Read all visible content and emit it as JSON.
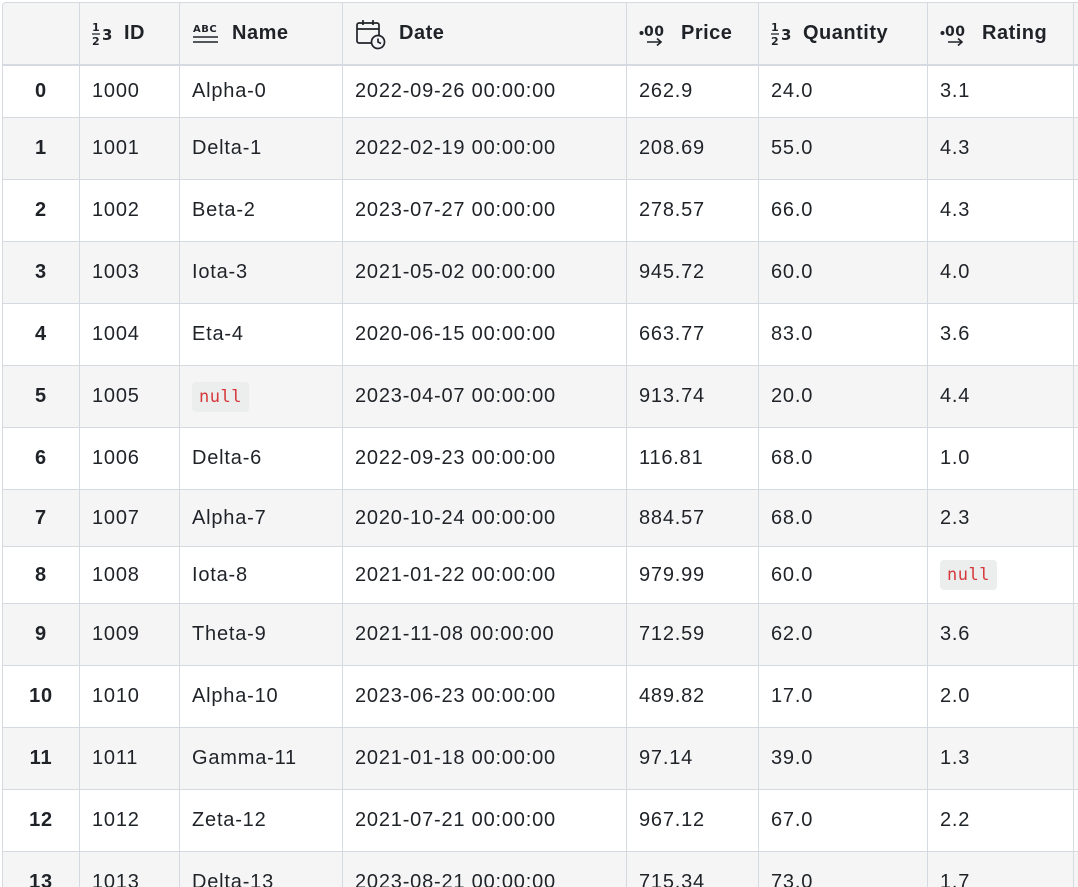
{
  "columns": [
    {
      "label": "",
      "icon": ""
    },
    {
      "label": "ID",
      "icon": "integer-type-icon"
    },
    {
      "label": "Name",
      "icon": "text-type-icon"
    },
    {
      "label": "Date",
      "icon": "calendar-clock-icon"
    },
    {
      "label": "Price",
      "icon": "decimal-type-icon"
    },
    {
      "label": "Quantity",
      "icon": "integer-type-icon"
    },
    {
      "label": "Rating",
      "icon": "decimal-type-icon"
    }
  ],
  "rows": [
    [
      "0",
      "1000",
      "Alpha-0",
      "2022-09-26 00:00:00",
      "262.9",
      "24.0",
      "3.1"
    ],
    [
      "1",
      "1001",
      "Delta-1",
      "2022-02-19 00:00:00",
      "208.69",
      "55.0",
      "4.3"
    ],
    [
      "2",
      "1002",
      "Beta-2",
      "2023-07-27 00:00:00",
      "278.57",
      "66.0",
      "4.3"
    ],
    [
      "3",
      "1003",
      "Iota-3",
      "2021-05-02 00:00:00",
      "945.72",
      "60.0",
      "4.0"
    ],
    [
      "4",
      "1004",
      "Eta-4",
      "2020-06-15 00:00:00",
      "663.77",
      "83.0",
      "3.6"
    ],
    [
      "5",
      "1005",
      "null",
      "2023-04-07 00:00:00",
      "913.74",
      "20.0",
      "4.4"
    ],
    [
      "6",
      "1006",
      "Delta-6",
      "2022-09-23 00:00:00",
      "116.81",
      "68.0",
      "1.0"
    ],
    [
      "7",
      "1007",
      "Alpha-7",
      "2020-10-24 00:00:00",
      "884.57",
      "68.0",
      "2.3"
    ],
    [
      "8",
      "1008",
      "Iota-8",
      "2021-01-22 00:00:00",
      "979.99",
      "60.0",
      "null"
    ],
    [
      "9",
      "1009",
      "Theta-9",
      "2021-11-08 00:00:00",
      "712.59",
      "62.0",
      "3.6"
    ],
    [
      "10",
      "1010",
      "Alpha-10",
      "2023-06-23 00:00:00",
      "489.82",
      "17.0",
      "2.0"
    ],
    [
      "11",
      "1011",
      "Gamma-11",
      "2021-01-18 00:00:00",
      "97.14",
      "39.0",
      "1.3"
    ],
    [
      "12",
      "1012",
      "Zeta-12",
      "2021-07-21 00:00:00",
      "967.12",
      "67.0",
      "2.2"
    ],
    [
      "13",
      "1013",
      "Delta-13",
      "2023-08-21 00:00:00",
      "715.34",
      "73.0",
      "1.7"
    ]
  ],
  "null_cells": [
    [
      5,
      2
    ],
    [
      8,
      6
    ]
  ],
  "colors": {
    "null_text": "#d6393b",
    "null_bg": "#eceded",
    "alt_row": "#f5f5f6",
    "border": "#d5dae0"
  }
}
